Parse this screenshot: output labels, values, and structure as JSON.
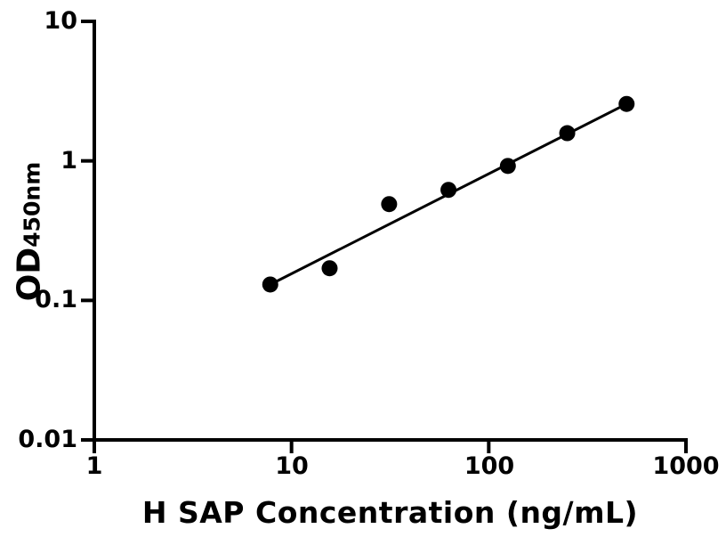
{
  "figure": {
    "background_color": "#ffffff",
    "foreground_color": "#000000"
  },
  "chart_data": {
    "type": "scatter",
    "title": "",
    "xlabel": "H SAP Concentration (ng/mL)",
    "ylabel": {
      "base": "OD",
      "subscript": "450nm"
    },
    "x_scale": "log",
    "y_scale": "log",
    "xlim": [
      1,
      1000
    ],
    "ylim": [
      0.01,
      10
    ],
    "grid": false,
    "legend": "none",
    "x_ticks": {
      "values": [
        1,
        10,
        100,
        1000
      ],
      "labels": [
        "1",
        "10",
        "100",
        "1000"
      ]
    },
    "y_ticks": {
      "values": [
        0.01,
        0.1,
        1,
        10
      ],
      "labels": [
        "0.01",
        "0.1",
        "1",
        "10"
      ]
    },
    "series": [
      {
        "name": "standard-curve-points",
        "marker": "filled-circle",
        "marker_color": "#000000",
        "x": [
          7.8,
          15.6,
          31.25,
          62.5,
          125,
          250,
          500
        ],
        "y": [
          0.13,
          0.17,
          0.49,
          0.62,
          0.92,
          1.58,
          2.56
        ]
      }
    ],
    "fit_line": {
      "shape": "straight-in-loglog",
      "color": "#000000",
      "x_start": 7.8,
      "y_start": 0.13,
      "x_end": 500,
      "y_end": 2.56
    }
  }
}
